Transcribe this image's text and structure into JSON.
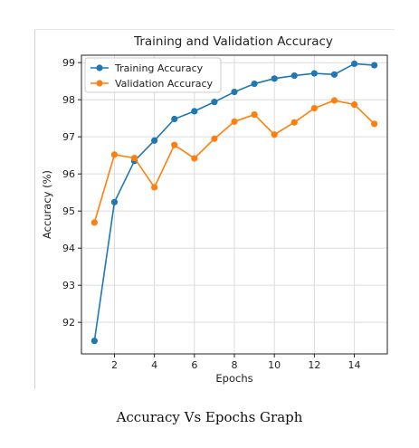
{
  "caption": "Accuracy Vs Epochs Graph",
  "chart_data": {
    "type": "line",
    "title": "Training and Validation Accuracy",
    "xlabel": "Epochs",
    "ylabel": "Accuracy (%)",
    "xlim": [
      0.35,
      15.65
    ],
    "ylim": [
      91.15,
      99.2
    ],
    "x_ticks": [
      2,
      4,
      6,
      8,
      10,
      12,
      14
    ],
    "y_ticks": [
      92,
      93,
      94,
      95,
      96,
      97,
      98,
      99
    ],
    "grid": true,
    "legend_position": "top-left",
    "x": [
      1,
      2,
      3,
      4,
      5,
      6,
      7,
      8,
      9,
      10,
      11,
      12,
      13,
      14,
      15
    ],
    "series": [
      {
        "name": "Training Accuracy",
        "color": "#1f77b4",
        "values": [
          91.5,
          95.24,
          96.35,
          96.9,
          97.48,
          97.69,
          97.94,
          98.21,
          98.43,
          98.57,
          98.65,
          98.71,
          98.68,
          98.97,
          98.93
        ]
      },
      {
        "name": "Validation Accuracy",
        "color": "#ff7f0e",
        "values": [
          94.69,
          96.52,
          96.43,
          95.64,
          96.78,
          96.42,
          96.95,
          97.41,
          97.6,
          97.06,
          97.39,
          97.77,
          97.98,
          97.87,
          97.35
        ]
      }
    ]
  }
}
